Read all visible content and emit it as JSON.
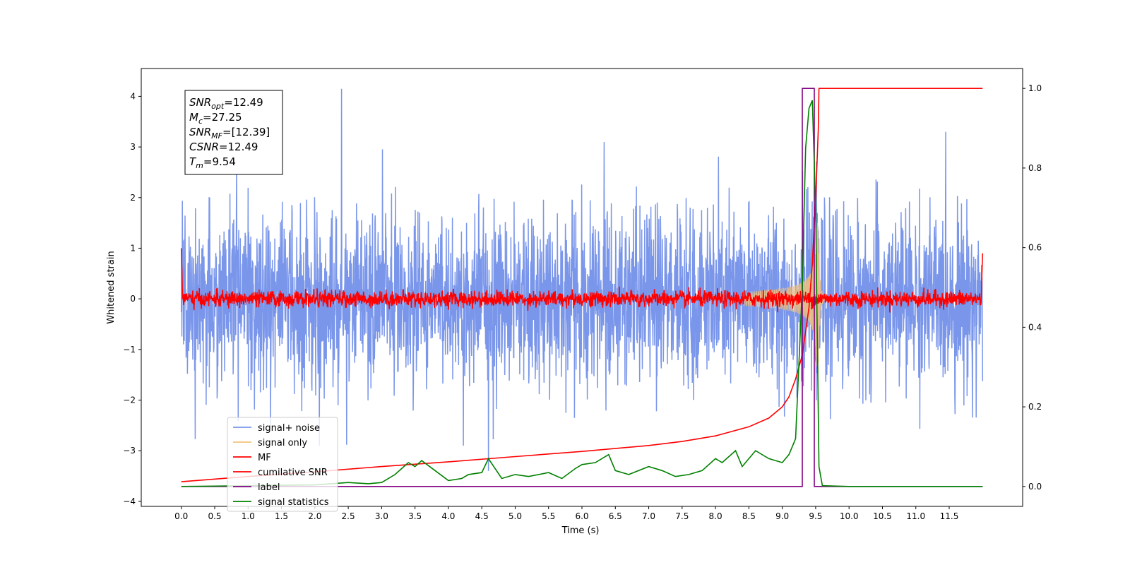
{
  "chart_data": {
    "type": "line",
    "title": "",
    "xlabel": "Time (s)",
    "ylabel": "Whitened strain",
    "xlim": [
      -0.6,
      12.6
    ],
    "ylim": [
      -4.1,
      4.55
    ],
    "y2lim": [
      -0.05,
      1.05
    ],
    "x_ticks": [
      "0.0",
      "0.5",
      "1.0",
      "1.5",
      "2.0",
      "2.5",
      "3.0",
      "3.5",
      "4.0",
      "4.5",
      "5.0",
      "5.5",
      "6.0",
      "6.5",
      "7.0",
      "7.5",
      "8.0",
      "8.5",
      "9.0",
      "9.5",
      "10.0",
      "10.5",
      "11.0",
      "11.5"
    ],
    "y_ticks": [
      "4",
      "3",
      "2",
      "1",
      "0",
      "−1",
      "−2",
      "−3",
      "−4"
    ],
    "y2_ticks": [
      "1.0",
      "0.8",
      "0.6",
      "0.4",
      "0.2",
      "0.0"
    ],
    "grid": false,
    "legend_position": "lower-left",
    "annotation": {
      "lines": [
        {
          "name": "SNR",
          "sub": "opt",
          "value": "=12.49"
        },
        {
          "name": "M",
          "sub": "c",
          "value": "=27.25"
        },
        {
          "name": "SNR",
          "sub": "MF",
          "value": "=[12.39]"
        },
        {
          "name": "CSNR",
          "sub": "",
          "value": "=12.49"
        },
        {
          "name": "T",
          "sub": "m",
          "value": "=9.54"
        }
      ]
    },
    "series": [
      {
        "name": "signal+ noise",
        "color": "#4169e1",
        "axis": "left",
        "kind": "noise",
        "time_range": [
          0.0,
          12.0
        ],
        "std": 1.0,
        "max": 4.15,
        "min": -3.4
      },
      {
        "name": "signal only",
        "color": "#f4c27a",
        "axis": "left",
        "kind": "chirp",
        "time_range": [
          8.4,
          9.54
        ],
        "peak_amplitude": 1.5
      },
      {
        "name": "MF",
        "color": "#ff0000",
        "axis": "left",
        "kind": "noise",
        "time_range": [
          0.0,
          12.0
        ],
        "std": 0.08,
        "start_value": 1.0,
        "end_value": 0.9
      },
      {
        "name": "cumilative SNR",
        "color": "#ff0000",
        "axis": "right",
        "x": [
          0.0,
          1.0,
          2.0,
          3.0,
          4.0,
          5.0,
          6.0,
          7.0,
          7.5,
          8.0,
          8.5,
          8.8,
          9.0,
          9.1,
          9.2,
          9.3,
          9.4,
          9.45,
          9.5,
          9.54,
          9.55,
          12.0
        ],
        "y": [
          0.012,
          0.025,
          0.037,
          0.05,
          0.062,
          0.075,
          0.088,
          0.103,
          0.113,
          0.127,
          0.15,
          0.172,
          0.2,
          0.225,
          0.27,
          0.33,
          0.45,
          0.56,
          0.72,
          0.9,
          1.0,
          1.0
        ]
      },
      {
        "name": "label",
        "color": "#800080",
        "axis": "right",
        "x": [
          0.0,
          9.3,
          9.3,
          9.48,
          9.48,
          12.0
        ],
        "y": [
          0.0,
          0.0,
          1.0,
          1.0,
          0.0,
          0.0
        ]
      },
      {
        "name": "signal statistics",
        "color": "#008000",
        "axis": "right",
        "x": [
          0.0,
          0.5,
          1.0,
          1.5,
          2.0,
          2.5,
          2.8,
          3.0,
          3.2,
          3.4,
          3.5,
          3.6,
          3.8,
          4.0,
          4.2,
          4.3,
          4.5,
          4.6,
          4.8,
          5.0,
          5.2,
          5.5,
          5.7,
          5.9,
          6.0,
          6.2,
          6.4,
          6.5,
          6.7,
          7.0,
          7.2,
          7.4,
          7.6,
          7.8,
          8.0,
          8.1,
          8.3,
          8.4,
          8.6,
          8.8,
          9.0,
          9.1,
          9.2,
          9.3,
          9.35,
          9.4,
          9.45,
          9.5,
          9.55,
          9.6,
          10.0,
          12.0
        ],
        "y": [
          0.0,
          0.001,
          0.002,
          0.003,
          0.004,
          0.01,
          0.007,
          0.01,
          0.03,
          0.06,
          0.05,
          0.065,
          0.04,
          0.015,
          0.02,
          0.03,
          0.035,
          0.07,
          0.02,
          0.03,
          0.025,
          0.035,
          0.02,
          0.045,
          0.055,
          0.06,
          0.08,
          0.04,
          0.03,
          0.05,
          0.04,
          0.025,
          0.03,
          0.04,
          0.07,
          0.06,
          0.09,
          0.05,
          0.09,
          0.07,
          0.06,
          0.08,
          0.12,
          0.5,
          0.85,
          0.95,
          0.97,
          0.7,
          0.05,
          0.002,
          0.0,
          0.0
        ]
      }
    ]
  }
}
